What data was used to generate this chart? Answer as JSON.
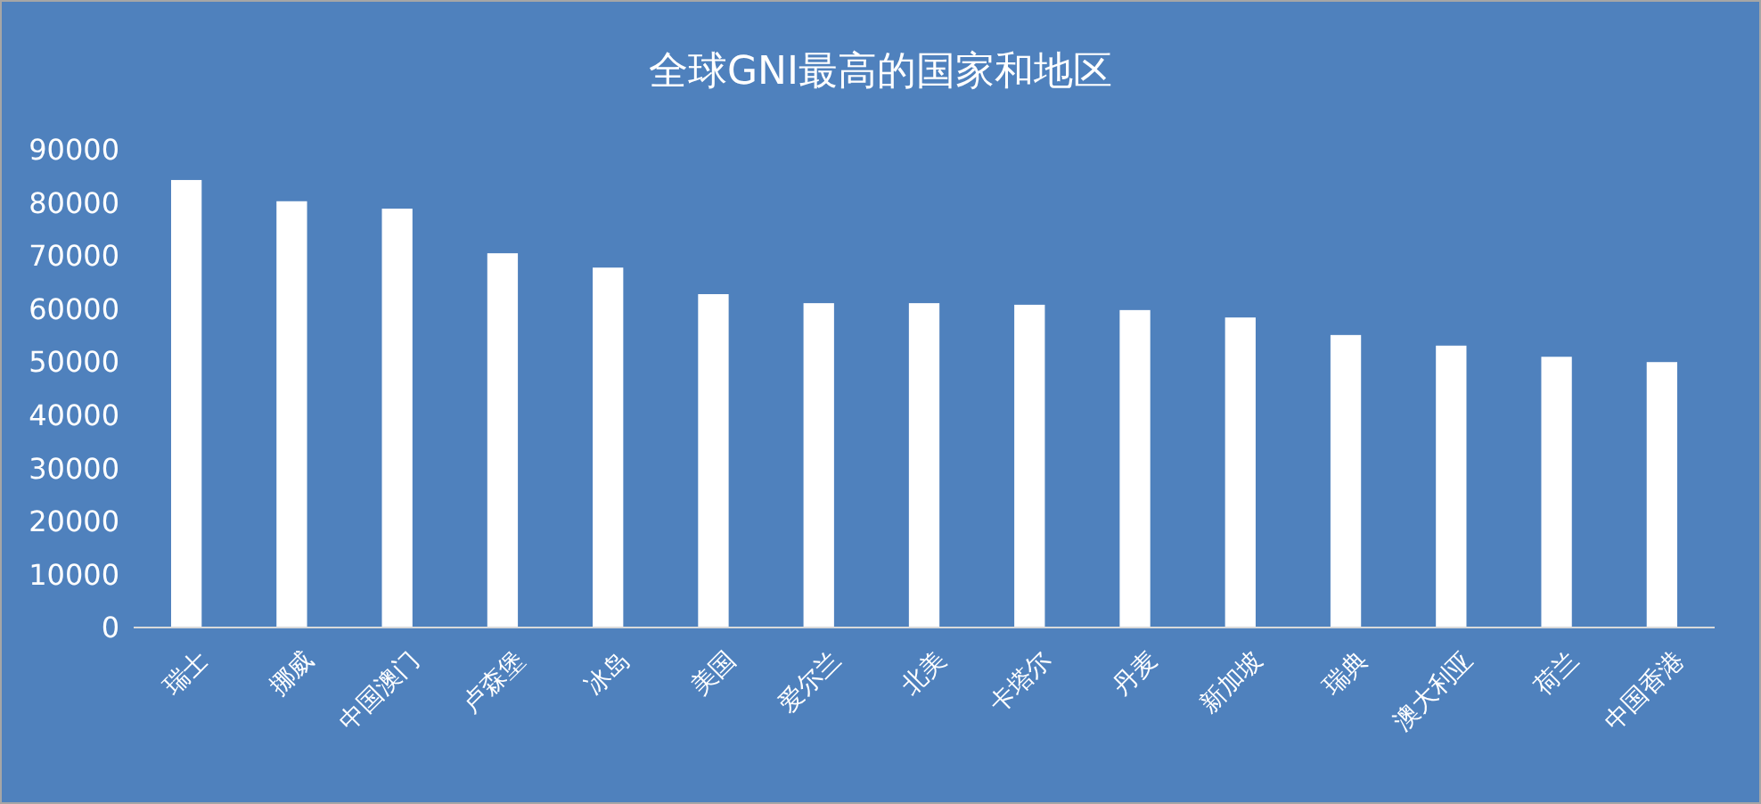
{
  "chart_data": {
    "type": "bar",
    "title": "全球GNI最高的国家和地区",
    "categories": [
      "瑞士",
      "挪威",
      "中国澳门",
      "卢森堡",
      "冰岛",
      "美国",
      "爱尔兰",
      "北美",
      "卡塔尔",
      "丹麦",
      "新加坡",
      "瑞典",
      "澳大利亚",
      "荷兰",
      "中国香港"
    ],
    "values": [
      84300,
      80300,
      78900,
      70500,
      67800,
      62800,
      61100,
      61100,
      60800,
      59800,
      58400,
      55100,
      53100,
      51000,
      50000
    ],
    "color": "#ffffff",
    "ylim": [
      0,
      90000
    ],
    "yticks": [
      0,
      10000,
      20000,
      30000,
      40000,
      50000,
      60000,
      70000,
      80000,
      90000
    ],
    "grid": false
  }
}
